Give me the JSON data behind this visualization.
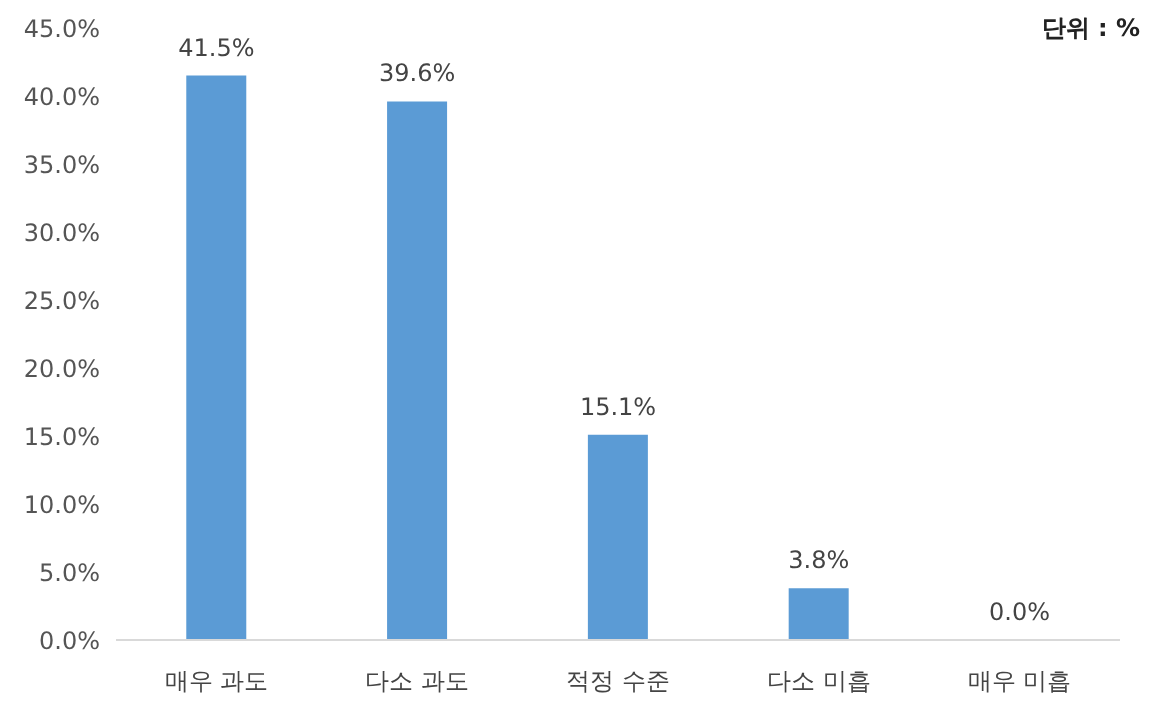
{
  "chart_data": {
    "type": "bar",
    "categories": [
      "매우 과도",
      "다소 과도",
      "적정 수준",
      "다소 미흡",
      "매우 미흡"
    ],
    "values": [
      41.5,
      39.6,
      15.1,
      3.8,
      0.0
    ],
    "value_labels": [
      "41.5%",
      "39.6%",
      "15.1%",
      "3.8%",
      "0.0%"
    ],
    "color": "#5b9bd5",
    "ylim": [
      0,
      45
    ],
    "yticks": [
      {
        "value": 0,
        "label": "0.0%"
      },
      {
        "value": 5,
        "label": "5.0%"
      },
      {
        "value": 10,
        "label": "10.0%"
      },
      {
        "value": 15,
        "label": "15.0%"
      },
      {
        "value": 20,
        "label": "20.0%"
      },
      {
        "value": 25,
        "label": "25.0%"
      },
      {
        "value": 30,
        "label": "30.0%"
      },
      {
        "value": 35,
        "label": "35.0%"
      },
      {
        "value": 40,
        "label": "40.0%"
      },
      {
        "value": 45,
        "label": "45.0%"
      }
    ],
    "annotations": [
      "단위 : %"
    ],
    "grid": false,
    "legend": false
  }
}
